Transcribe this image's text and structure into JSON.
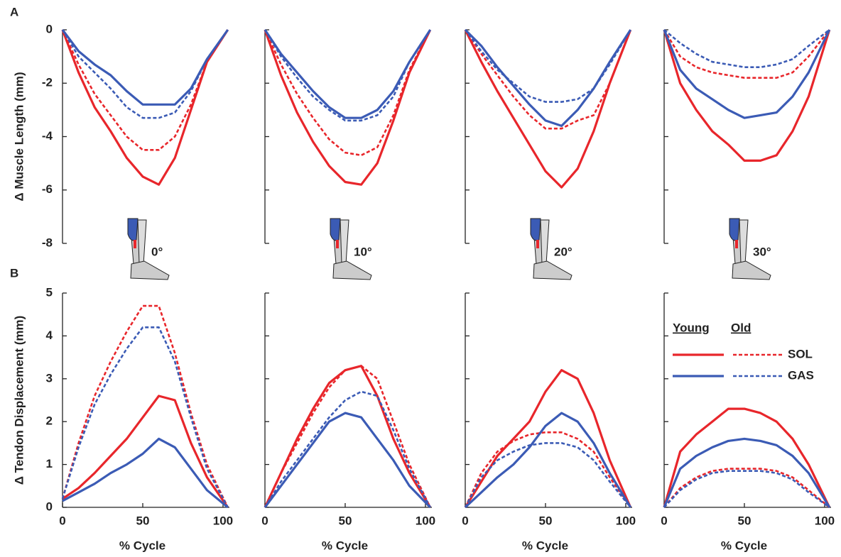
{
  "panel_labels": [
    "A",
    "B"
  ],
  "chart_data": [
    {
      "type": "line",
      "row": "A",
      "annotation": "0°",
      "ylabel": "Δ Muscle Length (mm)",
      "show_ytick_labels": true,
      "x": [
        0,
        10,
        20,
        30,
        40,
        50,
        60,
        70,
        80,
        90,
        103
      ],
      "xlim": [
        0,
        104
      ],
      "ylim": [
        -8,
        0
      ],
      "yticks": [
        0,
        -2,
        -4,
        -6,
        -8
      ],
      "series": [
        {
          "name": "SOL",
          "group": "Young",
          "color": "#e8262b",
          "dashed": false,
          "values": [
            0,
            -1.6,
            -2.9,
            -3.8,
            -4.8,
            -5.5,
            -5.8,
            -4.8,
            -3.0,
            -1.2,
            0
          ]
        },
        {
          "name": "SOL",
          "group": "Old",
          "color": "#e8262b",
          "dashed": true,
          "values": [
            0,
            -1.3,
            -2.4,
            -3.2,
            -4.0,
            -4.5,
            -4.5,
            -4.0,
            -2.8,
            -1.2,
            0
          ]
        },
        {
          "name": "GAS",
          "group": "Young",
          "color": "#3b5bb5",
          "dashed": false,
          "values": [
            0,
            -0.8,
            -1.3,
            -1.7,
            -2.3,
            -2.8,
            -2.8,
            -2.8,
            -2.2,
            -1.1,
            0
          ]
        },
        {
          "name": "GAS",
          "group": "Old",
          "color": "#3b5bb5",
          "dashed": true,
          "values": [
            0,
            -1.0,
            -1.6,
            -2.2,
            -2.9,
            -3.3,
            -3.3,
            -3.1,
            -2.3,
            -1.1,
            0
          ]
        }
      ]
    },
    {
      "type": "line",
      "row": "A",
      "annotation": "10°",
      "show_ytick_labels": false,
      "x": [
        0,
        10,
        20,
        30,
        40,
        50,
        60,
        70,
        80,
        90,
        103
      ],
      "xlim": [
        0,
        104
      ],
      "ylim": [
        -8,
        0
      ],
      "yticks": [
        0,
        -2,
        -4,
        -6,
        -8
      ],
      "series": [
        {
          "name": "SOL",
          "group": "Young",
          "color": "#e8262b",
          "dashed": false,
          "values": [
            0,
            -1.7,
            -3.1,
            -4.2,
            -5.1,
            -5.7,
            -5.8,
            -5.0,
            -3.4,
            -1.6,
            0
          ]
        },
        {
          "name": "SOL",
          "group": "Old",
          "color": "#e8262b",
          "dashed": true,
          "values": [
            0,
            -1.3,
            -2.4,
            -3.3,
            -4.1,
            -4.6,
            -4.7,
            -4.4,
            -3.2,
            -1.5,
            0
          ]
        },
        {
          "name": "GAS",
          "group": "Young",
          "color": "#3b5bb5",
          "dashed": false,
          "values": [
            0,
            -0.9,
            -1.6,
            -2.3,
            -2.9,
            -3.3,
            -3.3,
            -3.0,
            -2.3,
            -1.2,
            0
          ]
        },
        {
          "name": "GAS",
          "group": "Old",
          "color": "#3b5bb5",
          "dashed": true,
          "values": [
            0,
            -1.0,
            -1.8,
            -2.5,
            -3.0,
            -3.4,
            -3.4,
            -3.2,
            -2.5,
            -1.2,
            0
          ]
        }
      ]
    },
    {
      "type": "line",
      "row": "A",
      "annotation": "20°",
      "show_ytick_labels": false,
      "x": [
        0,
        10,
        20,
        30,
        40,
        50,
        60,
        70,
        80,
        90,
        103
      ],
      "xlim": [
        0,
        104
      ],
      "ylim": [
        -8,
        0
      ],
      "yticks": [
        0,
        -2,
        -4,
        -6,
        -8
      ],
      "series": [
        {
          "name": "SOL",
          "group": "Young",
          "color": "#e8262b",
          "dashed": false,
          "values": [
            0,
            -1.2,
            -2.3,
            -3.3,
            -4.3,
            -5.3,
            -5.9,
            -5.2,
            -3.8,
            -2.0,
            0
          ]
        },
        {
          "name": "SOL",
          "group": "Old",
          "color": "#e8262b",
          "dashed": true,
          "values": [
            0,
            -0.9,
            -1.7,
            -2.5,
            -3.2,
            -3.7,
            -3.7,
            -3.4,
            -3.2,
            -2.0,
            0
          ]
        },
        {
          "name": "GAS",
          "group": "Young",
          "color": "#3b5bb5",
          "dashed": false,
          "values": [
            0,
            -0.6,
            -1.4,
            -2.1,
            -2.8,
            -3.4,
            -3.6,
            -3.0,
            -2.2,
            -1.2,
            0
          ]
        },
        {
          "name": "GAS",
          "group": "Old",
          "color": "#3b5bb5",
          "dashed": true,
          "values": [
            0,
            -0.8,
            -1.5,
            -2.0,
            -2.5,
            -2.7,
            -2.7,
            -2.6,
            -2.2,
            -1.3,
            0
          ]
        }
      ]
    },
    {
      "type": "line",
      "row": "A",
      "annotation": "30°",
      "show_ytick_labels": false,
      "x": [
        0,
        10,
        20,
        30,
        40,
        50,
        60,
        70,
        80,
        90,
        103
      ],
      "xlim": [
        0,
        104
      ],
      "ylim": [
        -8,
        0
      ],
      "yticks": [
        0,
        -2,
        -4,
        -6,
        -8
      ],
      "series": [
        {
          "name": "SOL",
          "group": "Young",
          "color": "#e8262b",
          "dashed": false,
          "values": [
            0,
            -2.0,
            -3.0,
            -3.8,
            -4.3,
            -4.9,
            -4.9,
            -4.7,
            -3.8,
            -2.5,
            0
          ]
        },
        {
          "name": "SOL",
          "group": "Old",
          "color": "#e8262b",
          "dashed": true,
          "values": [
            0,
            -1.0,
            -1.4,
            -1.6,
            -1.7,
            -1.8,
            -1.8,
            -1.8,
            -1.6,
            -1.0,
            0
          ]
        },
        {
          "name": "GAS",
          "group": "Young",
          "color": "#3b5bb5",
          "dashed": false,
          "values": [
            0,
            -1.5,
            -2.2,
            -2.6,
            -3.0,
            -3.3,
            -3.2,
            -3.1,
            -2.5,
            -1.6,
            0
          ]
        },
        {
          "name": "GAS",
          "group": "Old",
          "color": "#3b5bb5",
          "dashed": true,
          "values": [
            0,
            -0.5,
            -0.9,
            -1.2,
            -1.3,
            -1.4,
            -1.4,
            -1.3,
            -1.1,
            -0.6,
            0
          ]
        }
      ]
    },
    {
      "type": "line",
      "row": "B",
      "ylabel": "Δ Tendon Displacement (mm)",
      "xlabel": "% Cycle",
      "show_ytick_labels": true,
      "x": [
        0,
        10,
        20,
        30,
        40,
        50,
        60,
        70,
        80,
        90,
        103
      ],
      "xlim": [
        0,
        104
      ],
      "ylim": [
        0,
        5
      ],
      "yticks": [
        0,
        1,
        2,
        3,
        4,
        5
      ],
      "xticks": [
        0,
        50,
        100
      ],
      "series": [
        {
          "name": "SOL",
          "group": "Young",
          "color": "#e8262b",
          "dashed": false,
          "values": [
            0.2,
            0.45,
            0.8,
            1.2,
            1.6,
            2.1,
            2.6,
            2.5,
            1.5,
            0.7,
            0
          ]
        },
        {
          "name": "SOL",
          "group": "Old",
          "color": "#e8262b",
          "dashed": true,
          "values": [
            0.2,
            1.5,
            2.6,
            3.4,
            4.1,
            4.7,
            4.7,
            3.6,
            2.2,
            1.0,
            0
          ]
        },
        {
          "name": "GAS",
          "group": "Young",
          "color": "#3b5bb5",
          "dashed": false,
          "values": [
            0.15,
            0.35,
            0.55,
            0.8,
            1.0,
            1.25,
            1.6,
            1.4,
            0.9,
            0.4,
            0
          ]
        },
        {
          "name": "GAS",
          "group": "Old",
          "color": "#3b5bb5",
          "dashed": true,
          "values": [
            0.2,
            1.4,
            2.4,
            3.1,
            3.7,
            4.2,
            4.2,
            3.4,
            2.1,
            0.9,
            0
          ]
        }
      ]
    },
    {
      "type": "line",
      "row": "B",
      "xlabel": "% Cycle",
      "show_ytick_labels": false,
      "x": [
        0,
        10,
        20,
        30,
        40,
        50,
        60,
        70,
        80,
        90,
        103
      ],
      "xlim": [
        0,
        104
      ],
      "ylim": [
        0,
        5
      ],
      "yticks": [
        0,
        1,
        2,
        3,
        4,
        5
      ],
      "xticks": [
        0,
        50,
        100
      ],
      "series": [
        {
          "name": "SOL",
          "group": "Young",
          "color": "#e8262b",
          "dashed": false,
          "values": [
            0,
            0.8,
            1.6,
            2.3,
            2.9,
            3.2,
            3.3,
            2.6,
            1.6,
            0.8,
            0
          ]
        },
        {
          "name": "SOL",
          "group": "Old",
          "color": "#e8262b",
          "dashed": true,
          "values": [
            0,
            0.8,
            1.5,
            2.2,
            2.8,
            3.2,
            3.3,
            3.0,
            2.0,
            1.0,
            0
          ]
        },
        {
          "name": "GAS",
          "group": "Young",
          "color": "#3b5bb5",
          "dashed": false,
          "values": [
            0,
            0.5,
            1.0,
            1.5,
            2.0,
            2.2,
            2.1,
            1.6,
            1.1,
            0.5,
            0
          ]
        },
        {
          "name": "GAS",
          "group": "Old",
          "color": "#3b5bb5",
          "dashed": true,
          "values": [
            0,
            0.6,
            1.1,
            1.6,
            2.1,
            2.5,
            2.7,
            2.6,
            1.8,
            0.9,
            0
          ]
        }
      ]
    },
    {
      "type": "line",
      "row": "B",
      "xlabel": "% Cycle",
      "show_ytick_labels": false,
      "x": [
        0,
        10,
        20,
        30,
        40,
        50,
        60,
        70,
        80,
        90,
        103
      ],
      "xlim": [
        0,
        104
      ],
      "ylim": [
        0,
        5
      ],
      "yticks": [
        0,
        1,
        2,
        3,
        4,
        5
      ],
      "xticks": [
        0,
        50,
        100
      ],
      "series": [
        {
          "name": "SOL",
          "group": "Young",
          "color": "#e8262b",
          "dashed": false,
          "values": [
            0,
            0.6,
            1.2,
            1.6,
            2.0,
            2.7,
            3.2,
            3.0,
            2.2,
            1.1,
            0
          ]
        },
        {
          "name": "SOL",
          "group": "Old",
          "color": "#e8262b",
          "dashed": true,
          "values": [
            0,
            0.8,
            1.3,
            1.55,
            1.7,
            1.75,
            1.75,
            1.6,
            1.3,
            0.7,
            0
          ]
        },
        {
          "name": "GAS",
          "group": "Young",
          "color": "#3b5bb5",
          "dashed": false,
          "values": [
            0,
            0.35,
            0.7,
            1.0,
            1.4,
            1.9,
            2.2,
            2.0,
            1.5,
            0.8,
            0
          ]
        },
        {
          "name": "GAS",
          "group": "Old",
          "color": "#3b5bb5",
          "dashed": true,
          "values": [
            0,
            0.7,
            1.1,
            1.3,
            1.45,
            1.5,
            1.5,
            1.4,
            1.1,
            0.6,
            0
          ]
        }
      ]
    },
    {
      "type": "line",
      "row": "B",
      "xlabel": "% Cycle",
      "show_ytick_labels": false,
      "legend": true,
      "x": [
        0,
        10,
        20,
        30,
        40,
        50,
        60,
        70,
        80,
        90,
        103
      ],
      "xlim": [
        0,
        104
      ],
      "ylim": [
        0,
        5
      ],
      "yticks": [
        0,
        1,
        2,
        3,
        4,
        5
      ],
      "xticks": [
        0,
        50,
        100
      ],
      "series": [
        {
          "name": "SOL",
          "group": "Young",
          "color": "#e8262b",
          "dashed": false,
          "values": [
            0,
            1.3,
            1.7,
            2.0,
            2.3,
            2.3,
            2.2,
            2.0,
            1.6,
            1.0,
            0
          ]
        },
        {
          "name": "SOL",
          "group": "Old",
          "color": "#e8262b",
          "dashed": true,
          "values": [
            0,
            0.45,
            0.7,
            0.85,
            0.9,
            0.9,
            0.9,
            0.85,
            0.7,
            0.4,
            0
          ]
        },
        {
          "name": "GAS",
          "group": "Young",
          "color": "#3b5bb5",
          "dashed": false,
          "values": [
            0,
            0.9,
            1.2,
            1.4,
            1.55,
            1.6,
            1.55,
            1.45,
            1.2,
            0.8,
            0
          ]
        },
        {
          "name": "GAS",
          "group": "Old",
          "color": "#3b5bb5",
          "dashed": true,
          "values": [
            0,
            0.4,
            0.65,
            0.8,
            0.85,
            0.85,
            0.85,
            0.8,
            0.65,
            0.35,
            0
          ]
        }
      ]
    }
  ]
}
